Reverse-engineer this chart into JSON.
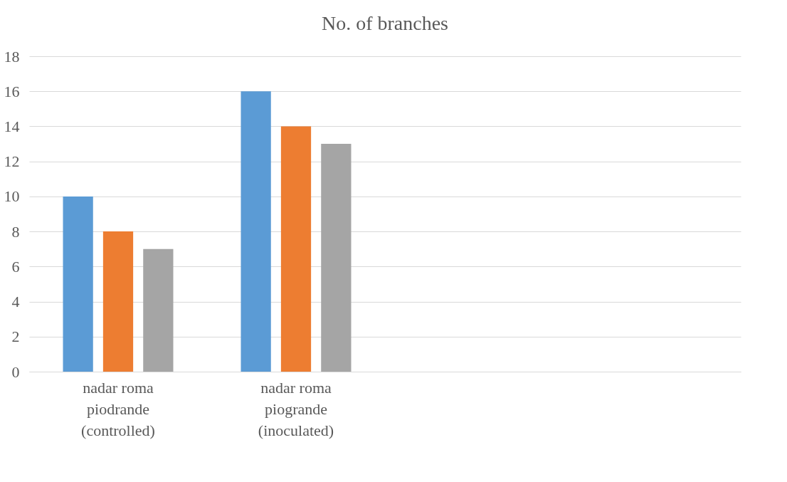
{
  "chart_data": {
    "type": "bar",
    "title": "No. of branches",
    "categories": [
      "nadar  roma piodrande (controlled)",
      "nadar  roma piogrande (inoculated)",
      null,
      null
    ],
    "series": [
      {
        "color": "#5b9bd5",
        "values": [
          10,
          16,
          null,
          null
        ]
      },
      {
        "color": "#ed7d31",
        "values": [
          8,
          14,
          null,
          null
        ]
      },
      {
        "color": "#a5a5a5",
        "values": [
          7,
          13,
          null,
          null
        ]
      }
    ],
    "ylim": [
      0,
      18
    ],
    "yticks": [
      0,
      2,
      4,
      6,
      8,
      10,
      12,
      14,
      16,
      18
    ],
    "grid": "y",
    "legend": false
  }
}
